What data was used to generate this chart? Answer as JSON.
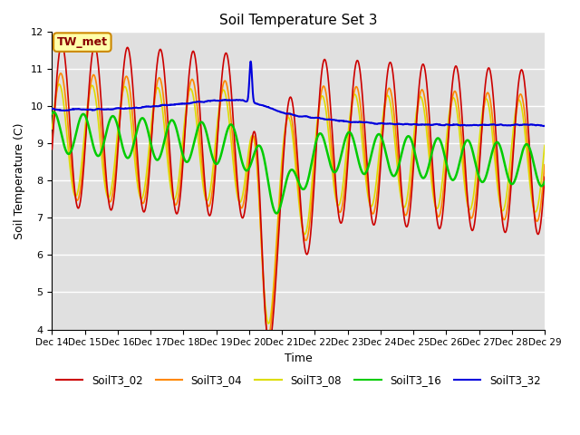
{
  "title": "Soil Temperature Set 3",
  "xlabel": "Time",
  "ylabel": "Soil Temperature (C)",
  "ylim": [
    4.0,
    12.0
  ],
  "yticks": [
    4.0,
    5.0,
    6.0,
    7.0,
    8.0,
    9.0,
    10.0,
    11.0,
    12.0
  ],
  "annotation": "TW_met",
  "bg_color": "#e0e0e0",
  "fig_color": "#ffffff",
  "lines": {
    "SoilT3_02": {
      "color": "#cc0000",
      "lw": 1.2
    },
    "SoilT3_04": {
      "color": "#ff8800",
      "lw": 1.2
    },
    "SoilT3_08": {
      "color": "#dddd00",
      "lw": 1.2
    },
    "SoilT3_16": {
      "color": "#00cc00",
      "lw": 1.8
    },
    "SoilT3_32": {
      "color": "#0000dd",
      "lw": 1.5
    }
  },
  "xtick_labels": [
    "Dec 14",
    "Dec 15",
    "Dec 16",
    "Dec 17",
    "Dec 18",
    "Dec 19",
    "Dec 20",
    "Dec 21",
    "Dec 22",
    "Dec 23",
    "Dec 24",
    "Dec 25",
    "Dec 26",
    "Dec 27",
    "Dec 28",
    "Dec 29"
  ],
  "num_points": 2160,
  "figsize": [
    6.4,
    4.8
  ],
  "dpi": 100
}
